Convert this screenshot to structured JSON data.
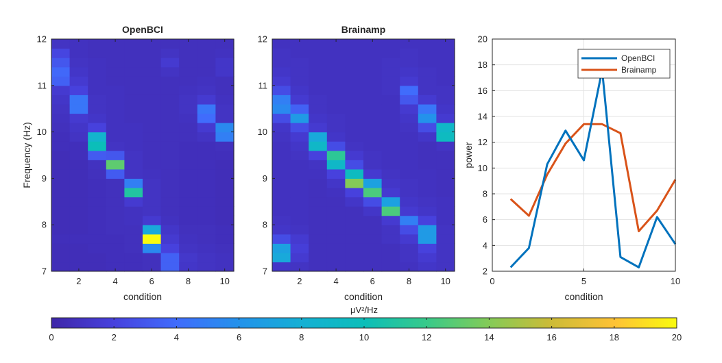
{
  "chart_data": [
    {
      "type": "heatmap",
      "title": "OpenBCI",
      "xlabel": "condition",
      "ylabel": "Frequency (Hz)",
      "x": [
        1,
        2,
        3,
        4,
        5,
        6,
        7,
        8,
        9,
        10
      ],
      "xlim": [
        0.5,
        10.5
      ],
      "y_bins": [
        7.1,
        7.3,
        7.5,
        7.7,
        7.9,
        8.1,
        8.3,
        8.5,
        8.7,
        8.9,
        9.1,
        9.3,
        9.5,
        9.7,
        9.9,
        10.1,
        10.3,
        10.5,
        10.7,
        10.9,
        11.1,
        11.3,
        11.5,
        11.7,
        11.9
      ],
      "ylim": [
        7,
        12
      ],
      "xticks": [
        "2",
        "4",
        "6",
        "8",
        "10"
      ],
      "yticks": [
        "7",
        "8",
        "9",
        "10",
        "11",
        "12"
      ],
      "clim": [
        0,
        20
      ],
      "z": [
        [
          0.6,
          0.6,
          0.6,
          0.7,
          0.7,
          0.8,
          3.5,
          1.2,
          1.0,
          0.9
        ],
        [
          0.6,
          0.6,
          0.6,
          0.7,
          0.7,
          0.8,
          3.5,
          1.3,
          1.0,
          0.9
        ],
        [
          0.6,
          0.6,
          0.7,
          0.7,
          0.8,
          5.5,
          2.0,
          1.0,
          0.9,
          0.8
        ],
        [
          0.7,
          0.7,
          0.7,
          0.7,
          0.8,
          20.0,
          1.5,
          0.9,
          0.8,
          0.7
        ],
        [
          0.6,
          0.6,
          0.7,
          0.8,
          0.8,
          7.5,
          1.2,
          0.8,
          0.8,
          0.7
        ],
        [
          0.6,
          0.6,
          0.7,
          0.8,
          0.9,
          1.5,
          0.9,
          0.7,
          0.7,
          0.6
        ],
        [
          0.6,
          0.6,
          0.7,
          0.8,
          0.9,
          1.0,
          0.8,
          0.7,
          0.7,
          0.6
        ],
        [
          0.6,
          0.6,
          0.7,
          0.8,
          1.5,
          1.0,
          0.8,
          0.7,
          0.7,
          0.6
        ],
        [
          0.6,
          0.6,
          0.7,
          0.8,
          11.0,
          1.0,
          0.8,
          0.7,
          0.7,
          0.6
        ],
        [
          0.6,
          0.6,
          0.7,
          0.8,
          5.0,
          1.0,
          0.8,
          0.7,
          0.7,
          0.6
        ],
        [
          0.6,
          0.6,
          0.8,
          3.2,
          1.0,
          0.9,
          0.8,
          0.7,
          0.7,
          0.6
        ],
        [
          0.6,
          0.6,
          0.9,
          13.0,
          1.0,
          0.8,
          0.8,
          0.7,
          0.7,
          0.6
        ],
        [
          0.6,
          0.7,
          3.2,
          3.0,
          1.0,
          0.8,
          0.8,
          0.7,
          0.7,
          0.7
        ],
        [
          0.7,
          0.7,
          10.0,
          1.0,
          0.9,
          0.8,
          0.8,
          0.7,
          0.7,
          0.8
        ],
        [
          0.7,
          1.0,
          8.5,
          0.9,
          0.9,
          0.8,
          0.8,
          0.8,
          1.0,
          5.0
        ],
        [
          0.8,
          1.2,
          2.0,
          0.9,
          0.9,
          0.8,
          0.8,
          0.8,
          1.5,
          5.5
        ],
        [
          0.9,
          1.5,
          1.2,
          0.9,
          0.8,
          0.8,
          0.8,
          0.9,
          4.0,
          1.0
        ],
        [
          1.0,
          4.5,
          1.0,
          0.9,
          0.8,
          0.8,
          0.8,
          1.0,
          4.5,
          1.0
        ],
        [
          1.2,
          4.5,
          1.0,
          0.9,
          0.8,
          0.8,
          0.8,
          1.0,
          1.5,
          0.9
        ],
        [
          1.5,
          2.0,
          0.9,
          0.9,
          0.8,
          0.8,
          0.8,
          0.9,
          1.0,
          0.8
        ],
        [
          3.5,
          1.5,
          0.9,
          0.8,
          0.8,
          0.8,
          0.8,
          0.8,
          0.9,
          0.8
        ],
        [
          3.8,
          1.2,
          0.9,
          0.8,
          0.8,
          0.8,
          1.0,
          0.8,
          0.8,
          1.2
        ],
        [
          3.0,
          1.0,
          0.9,
          0.8,
          0.8,
          0.8,
          1.5,
          0.8,
          0.8,
          1.2
        ],
        [
          2.2,
          0.9,
          0.8,
          0.8,
          0.8,
          0.8,
          1.0,
          0.8,
          0.8,
          0.9
        ],
        [
          1.0,
          0.9,
          0.8,
          0.8,
          0.8,
          0.8,
          0.8,
          0.8,
          0.8,
          0.8
        ]
      ]
    },
    {
      "type": "heatmap",
      "title": "Brainamp",
      "xlabel": "condition",
      "ylabel": "",
      "x": [
        1,
        2,
        3,
        4,
        5,
        6,
        7,
        8,
        9,
        10
      ],
      "xlim": [
        0.5,
        10.5
      ],
      "y_bins": [
        7.1,
        7.3,
        7.5,
        7.7,
        7.9,
        8.1,
        8.3,
        8.5,
        8.7,
        8.9,
        9.1,
        9.3,
        9.5,
        9.7,
        9.9,
        10.1,
        10.3,
        10.5,
        10.7,
        10.9,
        11.1,
        11.3,
        11.5,
        11.7,
        11.9
      ],
      "ylim": [
        7,
        12
      ],
      "xticks": [
        "2",
        "4",
        "6",
        "8",
        "10"
      ],
      "yticks": [
        "7",
        "8",
        "9",
        "10",
        "11",
        "12"
      ],
      "clim": [
        0,
        20
      ],
      "z": [
        [
          1.2,
          1.0,
          0.8,
          0.8,
          0.8,
          0.8,
          0.8,
          0.9,
          1.2,
          1.0
        ],
        [
          7.5,
          1.5,
          0.8,
          0.8,
          0.8,
          0.8,
          0.8,
          1.0,
          1.5,
          1.0
        ],
        [
          7.0,
          1.8,
          0.8,
          0.8,
          0.8,
          0.8,
          0.8,
          1.0,
          2.0,
          1.0
        ],
        [
          2.5,
          1.5,
          0.8,
          0.8,
          0.8,
          0.8,
          1.0,
          1.5,
          6.5,
          1.0
        ],
        [
          1.2,
          1.0,
          0.8,
          0.8,
          0.8,
          0.8,
          1.0,
          2.5,
          6.5,
          1.0
        ],
        [
          1.0,
          0.9,
          0.8,
          0.8,
          0.8,
          0.8,
          1.5,
          5.0,
          2.0,
          0.9
        ],
        [
          0.9,
          0.9,
          0.8,
          0.8,
          0.8,
          1.2,
          12.5,
          1.5,
          1.2,
          0.9
        ],
        [
          0.9,
          0.9,
          0.8,
          0.8,
          1.2,
          2.5,
          7.0,
          1.2,
          1.0,
          0.9
        ],
        [
          0.9,
          0.9,
          0.8,
          0.9,
          2.0,
          12.5,
          1.5,
          1.0,
          0.9,
          0.8
        ],
        [
          0.9,
          0.9,
          0.8,
          1.2,
          14.0,
          7.0,
          1.2,
          1.0,
          0.9,
          0.8
        ],
        [
          0.9,
          0.9,
          0.9,
          2.0,
          9.5,
          1.5,
          1.0,
          0.9,
          0.9,
          0.8
        ],
        [
          0.9,
          0.9,
          1.0,
          9.0,
          2.5,
          1.0,
          0.9,
          0.9,
          0.8,
          0.8
        ],
        [
          0.9,
          1.0,
          2.0,
          11.5,
          1.5,
          1.0,
          0.9,
          0.9,
          0.8,
          0.8
        ],
        [
          0.9,
          1.2,
          9.0,
          2.5,
          1.0,
          0.9,
          0.9,
          0.9,
          0.8,
          1.0
        ],
        [
          1.0,
          1.5,
          7.5,
          1.2,
          0.9,
          0.9,
          0.9,
          0.9,
          1.2,
          9.5
        ],
        [
          1.2,
          2.5,
          1.5,
          1.0,
          0.9,
          0.9,
          0.9,
          1.0,
          2.5,
          9.0
        ],
        [
          2.5,
          6.5,
          1.2,
          1.0,
          0.9,
          0.9,
          0.9,
          1.2,
          6.0,
          1.5
        ],
        [
          5.5,
          3.5,
          1.0,
          0.9,
          0.9,
          0.9,
          0.9,
          1.5,
          4.5,
          1.2
        ],
        [
          5.0,
          1.5,
          1.0,
          0.9,
          0.9,
          0.9,
          0.9,
          3.0,
          1.5,
          1.0
        ],
        [
          2.5,
          1.2,
          0.9,
          0.9,
          0.9,
          0.9,
          1.0,
          4.0,
          1.0,
          1.0
        ],
        [
          1.5,
          1.0,
          0.9,
          0.9,
          0.9,
          0.9,
          1.0,
          1.5,
          1.0,
          0.9
        ],
        [
          1.2,
          1.0,
          0.9,
          0.9,
          0.9,
          0.9,
          1.0,
          1.2,
          1.0,
          0.9
        ],
        [
          1.0,
          1.0,
          0.9,
          0.9,
          0.9,
          0.9,
          1.0,
          1.0,
          0.9,
          0.9
        ],
        [
          1.0,
          0.9,
          0.9,
          0.9,
          0.9,
          0.9,
          0.9,
          1.0,
          0.9,
          0.9
        ],
        [
          0.9,
          0.9,
          0.9,
          0.9,
          0.9,
          0.9,
          0.9,
          0.9,
          0.9,
          0.9
        ]
      ]
    },
    {
      "type": "line",
      "title": "",
      "xlabel": "condition",
      "ylabel": "power",
      "xlim": [
        0,
        10
      ],
      "ylim": [
        2,
        20
      ],
      "xticks": [
        "0",
        "5",
        "10"
      ],
      "yticks": [
        "2",
        "4",
        "6",
        "8",
        "10",
        "12",
        "14",
        "16",
        "18",
        "20"
      ],
      "grid": true,
      "legend_position": "top-right",
      "x": [
        1,
        2,
        3,
        4,
        5,
        6,
        7,
        8,
        9,
        10
      ],
      "series": [
        {
          "name": "OpenBCI",
          "color": "#0072BD",
          "values": [
            2.3,
            3.8,
            10.3,
            12.9,
            10.6,
            17.6,
            3.1,
            2.3,
            6.2,
            4.1
          ]
        },
        {
          "name": "Brainamp",
          "color": "#D95319",
          "values": [
            7.6,
            6.3,
            9.5,
            11.9,
            13.4,
            13.4,
            12.7,
            5.1,
            6.7,
            9.1
          ]
        }
      ]
    }
  ],
  "colorbar": {
    "label": "μV²/Hz",
    "ticks": [
      "0",
      "2",
      "4",
      "6",
      "8",
      "10",
      "12",
      "14",
      "16",
      "18",
      "20"
    ],
    "range": [
      0,
      20
    ],
    "colormap": "parula"
  }
}
